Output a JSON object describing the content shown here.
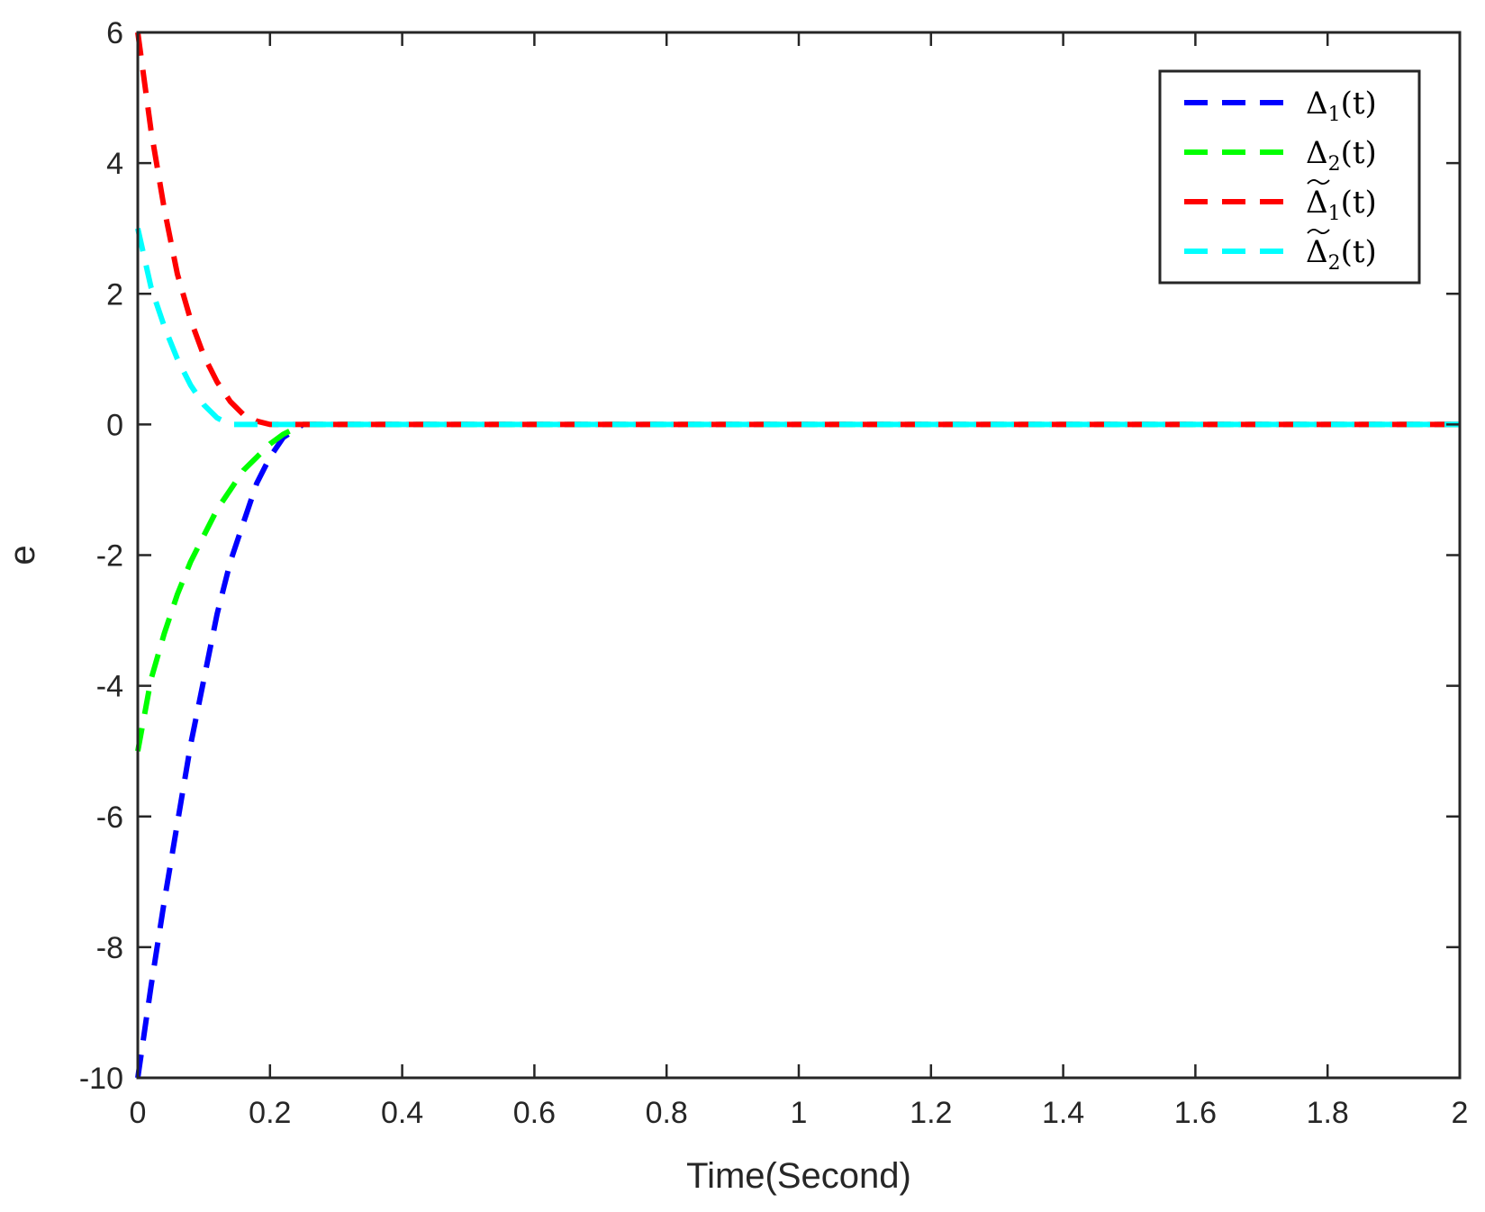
{
  "chart_data": {
    "type": "line",
    "xlabel": "Time(Second)",
    "ylabel": "e",
    "xlim": [
      0,
      2
    ],
    "ylim": [
      -10,
      6
    ],
    "xticks": [
      "0",
      "0.2",
      "0.4",
      "0.6",
      "0.8",
      "1",
      "1.2",
      "1.4",
      "1.6",
      "1.8",
      "2"
    ],
    "yticks": [
      "-10",
      "-8",
      "-6",
      "-4",
      "-2",
      "0",
      "2",
      "4",
      "6"
    ],
    "grid": false,
    "legend_position": "top-right",
    "series": [
      {
        "name": "Δ1(t)",
        "legend": {
          "base": "Δ",
          "sub": "1",
          "arg": "(t)",
          "tilde": false
        },
        "color": "#0000FF",
        "x": [
          0,
          0.02,
          0.04,
          0.06,
          0.08,
          0.1,
          0.12,
          0.14,
          0.16,
          0.18,
          0.2,
          0.22,
          0.25,
          2
        ],
        "y": [
          -10,
          -8.6,
          -7.3,
          -6.1,
          -4.9,
          -3.9,
          -2.9,
          -2.1,
          -1.5,
          -0.9,
          -0.5,
          -0.2,
          0,
          0
        ]
      },
      {
        "name": "Δ2(t)",
        "legend": {
          "base": "Δ",
          "sub": "2",
          "arg": "(t)",
          "tilde": false
        },
        "color": "#00FF00",
        "x": [
          0,
          0.02,
          0.04,
          0.06,
          0.08,
          0.1,
          0.12,
          0.14,
          0.16,
          0.18,
          0.2,
          0.22,
          0.25,
          2
        ],
        "y": [
          -5,
          -3.9,
          -3.2,
          -2.6,
          -2.1,
          -1.7,
          -1.3,
          -1.0,
          -0.7,
          -0.5,
          -0.3,
          -0.15,
          0,
          0
        ]
      },
      {
        "name": "Δ̃1(t)",
        "legend": {
          "base": "Δ",
          "sub": "1",
          "arg": "(t)",
          "tilde": true
        },
        "color": "#FF0000",
        "x": [
          0,
          0.02,
          0.04,
          0.06,
          0.08,
          0.1,
          0.12,
          0.14,
          0.16,
          0.18,
          0.2,
          2
        ],
        "y": [
          6,
          4.5,
          3.3,
          2.3,
          1.6,
          1.05,
          0.65,
          0.35,
          0.15,
          0.05,
          0,
          0
        ]
      },
      {
        "name": "Δ̃2(t)",
        "legend": {
          "base": "Δ",
          "sub": "2",
          "arg": "(t)",
          "tilde": true
        },
        "color": "#00FFFF",
        "x": [
          0,
          0.02,
          0.04,
          0.06,
          0.08,
          0.1,
          0.12,
          0.14,
          2
        ],
        "y": [
          3,
          2.1,
          1.5,
          1.0,
          0.6,
          0.3,
          0.1,
          0,
          0
        ]
      }
    ]
  }
}
